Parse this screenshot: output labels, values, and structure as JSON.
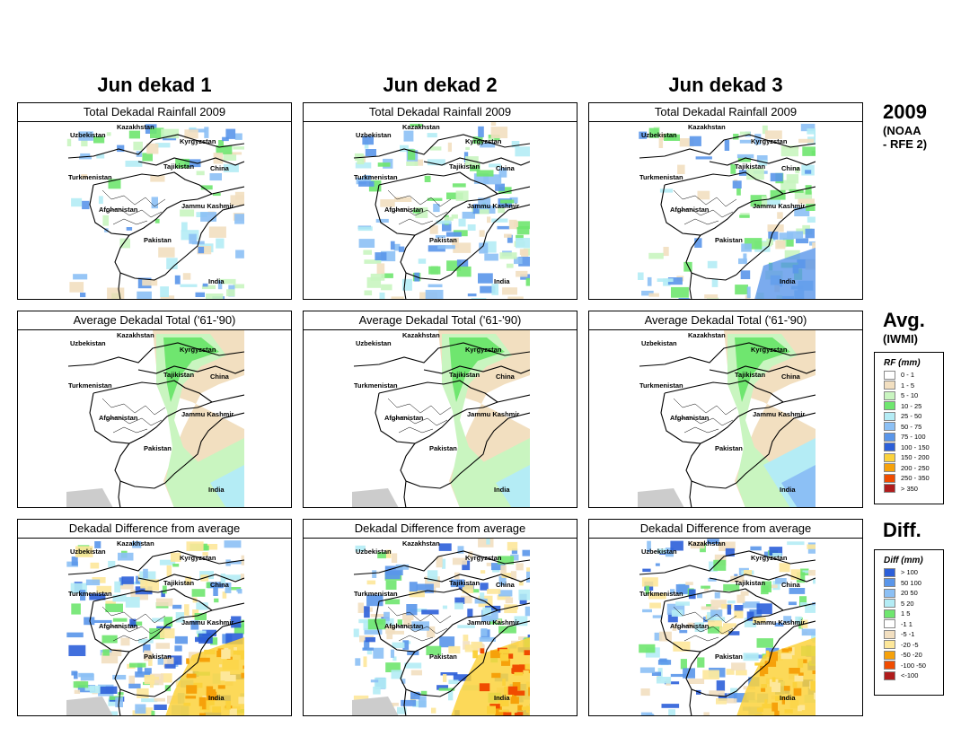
{
  "columns": [
    "Jun dekad 1",
    "Jun dekad 2",
    "Jun dekad 3"
  ],
  "rows": [
    {
      "panel_title": "Total Dekadal Rainfall 2009",
      "side_title": "2009",
      "side_subtitle": "(NOAA\n- RFE 2)"
    },
    {
      "panel_title": "Average Dekadal Total ('61-'90)",
      "side_title": "Avg.",
      "side_subtitle": "(IWMI)"
    },
    {
      "panel_title": "Dekadal Difference from average",
      "side_title": "Diff.",
      "side_subtitle": ""
    }
  ],
  "map_labels": {
    "kazakhstan": "Kazakhstan",
    "uzbekistan": "Uzbekistan",
    "kyrgyzstan": "Kyrgyzstan",
    "tajikistan": "Tajikistan",
    "china": "China",
    "turkmenistan": "Turkmenistan",
    "afghanistan": "Afghanistan",
    "jammu_kashmir": "Jammu Kashmir",
    "pakistan": "Pakistan",
    "india": "India"
  },
  "rf_legend": {
    "title": "RF (mm)",
    "items": [
      {
        "label": "0 - 1",
        "color": "#ffffff"
      },
      {
        "label": "1 - 5",
        "color": "#f2dfc0"
      },
      {
        "label": "5 - 10",
        "color": "#c9f5c0"
      },
      {
        "label": "10 - 25",
        "color": "#6fe66f"
      },
      {
        "label": "25 - 50",
        "color": "#b4ecf5"
      },
      {
        "label": "50 - 75",
        "color": "#8cc0f5"
      },
      {
        "label": "75 - 100",
        "color": "#5a96ea"
      },
      {
        "label": "100 - 150",
        "color": "#2c5fd9"
      },
      {
        "label": "150 - 200",
        "color": "#fbd23c"
      },
      {
        "label": "200 - 250",
        "color": "#f6a10a"
      },
      {
        "label": "250 - 350",
        "color": "#f04c00"
      },
      {
        "label": "> 350",
        "color": "#b01c1c"
      }
    ]
  },
  "diff_legend": {
    "title": "Diff (mm)",
    "items": [
      {
        "label": "> 100",
        "color": "#2c5fd9"
      },
      {
        "label": "50  100",
        "color": "#5a96ea"
      },
      {
        "label": "20   50",
        "color": "#8cc0f5"
      },
      {
        "label": "5   20",
        "color": "#b4ecf5"
      },
      {
        "label": "1    5",
        "color": "#6fe66f"
      },
      {
        "label": "-1    1",
        "color": "#ffffff"
      },
      {
        "label": "-5   -1",
        "color": "#f2dfc0"
      },
      {
        "label": "-20   -5",
        "color": "#fde79a"
      },
      {
        "label": "-50  -20",
        "color": "#f6a10a"
      },
      {
        "label": "-100  -50",
        "color": "#f04c00"
      },
      {
        "label": "<-100",
        "color": "#b01c1c"
      }
    ]
  },
  "colors": {
    "no_data": "#cccccc"
  }
}
